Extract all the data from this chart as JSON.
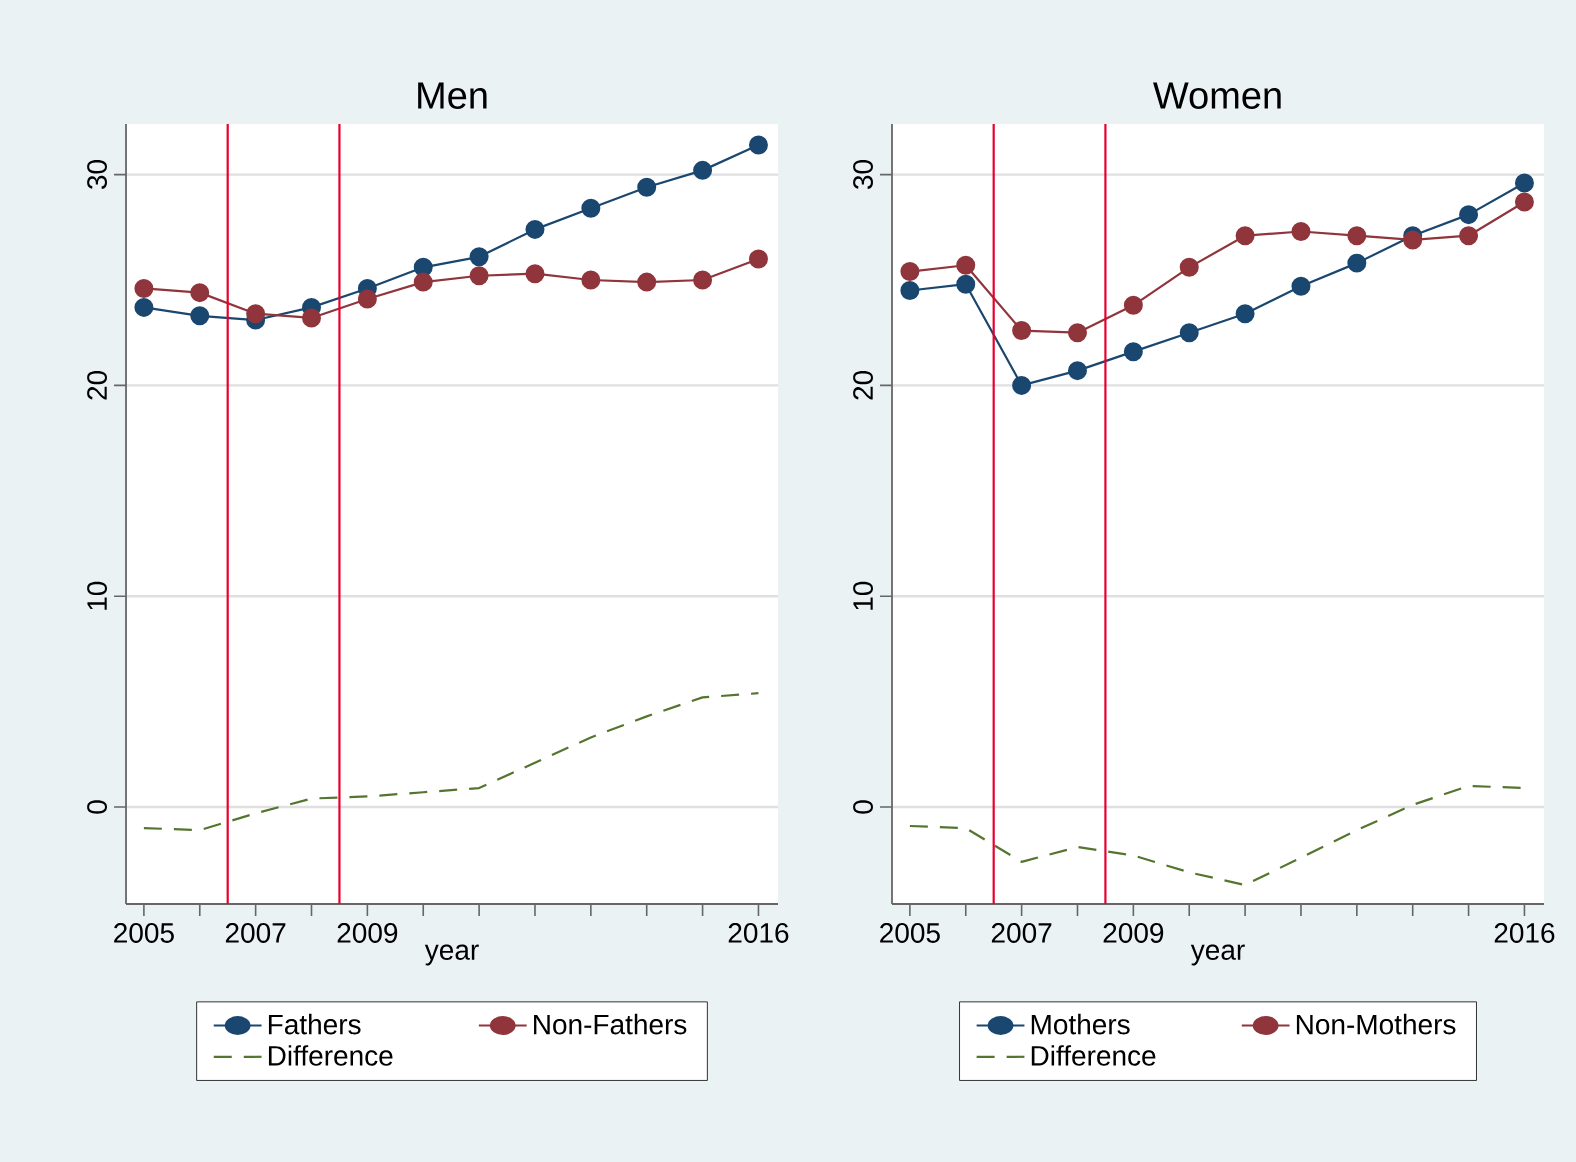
{
  "chart_data": [
    {
      "type": "line",
      "title": "Men",
      "xlabel": "year",
      "x": [
        2005,
        2006,
        2007,
        2008,
        2009,
        2010,
        2011,
        2012,
        2013,
        2014,
        2015,
        2016
      ],
      "series": [
        {
          "name": "Fathers",
          "color": "#1a476f",
          "marker": "circle",
          "line_style": "solid",
          "values": [
            23.7,
            23.3,
            23.1,
            23.7,
            24.6,
            25.6,
            26.1,
            27.4,
            28.4,
            29.4,
            30.2,
            31.4
          ]
        },
        {
          "name": "Non-Fathers",
          "color": "#90353b",
          "marker": "circle",
          "line_style": "solid",
          "values": [
            24.6,
            24.4,
            23.4,
            23.2,
            24.1,
            24.9,
            25.2,
            25.3,
            25.0,
            24.9,
            25.0,
            26.0
          ]
        },
        {
          "name": "Difference",
          "color": "#55752f",
          "marker": "none",
          "line_style": "dashed",
          "values": [
            -1.0,
            -1.1,
            -0.3,
            0.4,
            0.5,
            0.7,
            0.9,
            2.1,
            3.3,
            4.3,
            5.2,
            5.4
          ]
        }
      ],
      "xlim": [
        2004.68,
        2016.35
      ],
      "ylim": [
        -4.6,
        32.4
      ],
      "xticks": [
        2005,
        {
          "value": 2006,
          "label": null
        },
        2007,
        {
          "value": 2008,
          "label": null
        },
        2009,
        {
          "value": 2010,
          "label": null
        },
        {
          "value": 2011,
          "label": null
        },
        {
          "value": 2012,
          "label": null
        },
        {
          "value": 2013,
          "label": null
        },
        {
          "value": 2014,
          "label": null
        },
        {
          "value": 2015,
          "label": null
        },
        2016
      ],
      "yticks": [
        0,
        10,
        20,
        30
      ],
      "grid": "y",
      "legend": "bottom",
      "ref_lines": [
        {
          "axis": "x",
          "value": 2006.5,
          "color": "#e8002d"
        },
        {
          "axis": "x",
          "value": 2008.5,
          "color": "#e8002d"
        }
      ]
    },
    {
      "type": "line",
      "title": "Women",
      "xlabel": "year",
      "x": [
        2005,
        2006,
        2007,
        2008,
        2009,
        2010,
        2011,
        2012,
        2013,
        2014,
        2015,
        2016
      ],
      "series": [
        {
          "name": "Mothers",
          "color": "#1a476f",
          "marker": "circle",
          "line_style": "solid",
          "values": [
            24.5,
            24.8,
            20.0,
            20.7,
            21.6,
            22.5,
            23.4,
            24.7,
            25.8,
            27.1,
            28.1,
            29.6
          ]
        },
        {
          "name": "Non-Mothers",
          "color": "#90353b",
          "marker": "circle",
          "line_style": "solid",
          "values": [
            25.4,
            25.7,
            22.6,
            22.5,
            23.8,
            25.6,
            27.1,
            27.3,
            27.1,
            26.9,
            27.1,
            28.7
          ]
        },
        {
          "name": "Difference",
          "color": "#55752f",
          "marker": "none",
          "line_style": "dashed",
          "values": [
            -0.9,
            -1.0,
            -2.6,
            -1.9,
            -2.3,
            -3.1,
            -3.7,
            -2.4,
            -1.1,
            0.1,
            1.0,
            0.9
          ]
        }
      ],
      "xlim": [
        2004.68,
        2016.35
      ],
      "ylim": [
        -4.6,
        32.4
      ],
      "xticks": [
        2005,
        {
          "value": 2006,
          "label": null
        },
        2007,
        {
          "value": 2008,
          "label": null
        },
        2009,
        {
          "value": 2010,
          "label": null
        },
        {
          "value": 2011,
          "label": null
        },
        {
          "value": 2012,
          "label": null
        },
        {
          "value": 2013,
          "label": null
        },
        {
          "value": 2014,
          "label": null
        },
        {
          "value": 2015,
          "label": null
        },
        2016
      ],
      "yticks": [
        0,
        10,
        20,
        30
      ],
      "grid": "y",
      "legend": "bottom",
      "ref_lines": [
        {
          "axis": "x",
          "value": 2006.5,
          "color": "#e8002d"
        },
        {
          "axis": "x",
          "value": 2008.5,
          "color": "#e8002d"
        }
      ]
    }
  ]
}
